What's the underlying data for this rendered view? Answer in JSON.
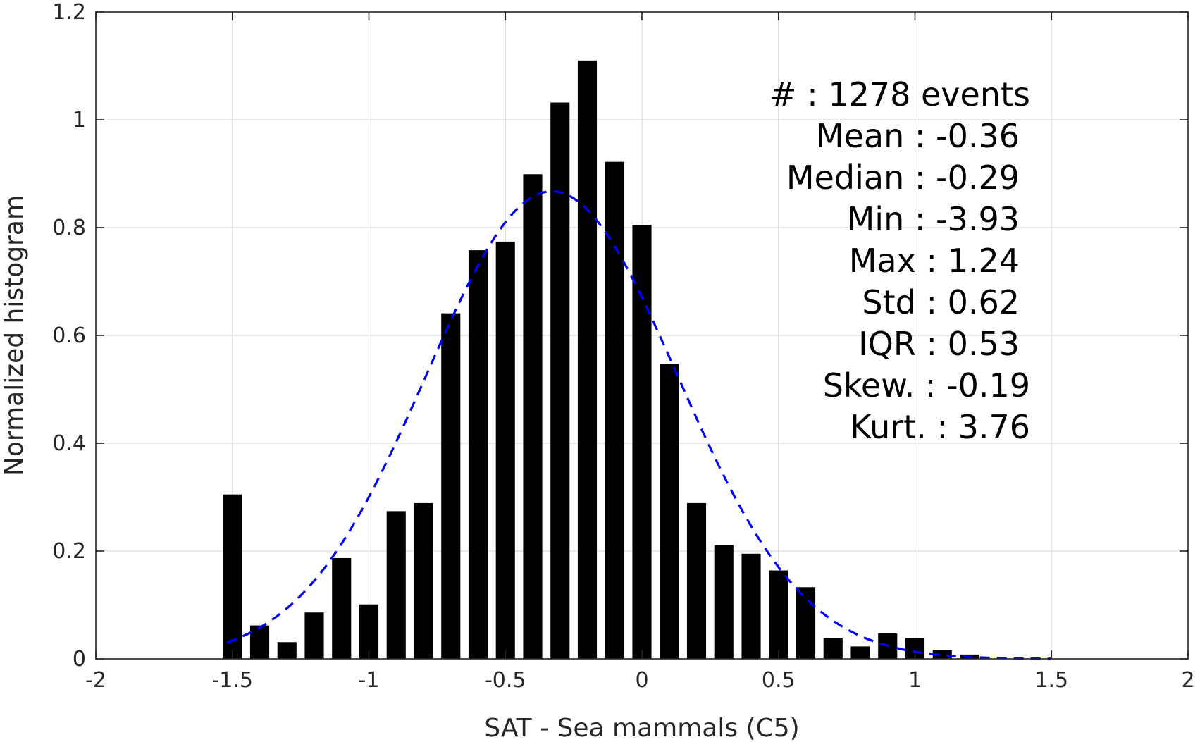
{
  "chart_data": {
    "type": "bar",
    "xlabel": "SAT - Sea mammals (C5)",
    "ylabel": "Normalized histogram",
    "xlim": [
      -2,
      2
    ],
    "ylim": [
      0,
      1.2
    ],
    "x_ticks": [
      "-2",
      "-1.5",
      "-1",
      "-0.5",
      "0",
      "0.5",
      "1",
      "1.5",
      "2"
    ],
    "y_ticks": [
      "0",
      "0.2",
      "0.4",
      "0.6",
      "0.8",
      "1",
      "1.2"
    ],
    "grid": true,
    "bar_color": "#000000",
    "bars": {
      "x": [
        -1.5,
        -1.4,
        -1.3,
        -1.2,
        -1.1,
        -1.0,
        -0.9,
        -0.8,
        -0.7,
        -0.6,
        -0.5,
        -0.4,
        -0.3,
        -0.2,
        -0.1,
        0.0,
        0.1,
        0.2,
        0.3,
        0.4,
        0.5,
        0.6,
        0.7,
        0.8,
        0.9,
        1.0,
        1.1,
        1.2
      ],
      "values": [
        0.305,
        0.062,
        0.031,
        0.086,
        0.187,
        0.101,
        0.274,
        0.289,
        0.641,
        0.758,
        0.774,
        0.899,
        1.032,
        1.11,
        0.922,
        0.805,
        0.547,
        0.289,
        0.211,
        0.195,
        0.164,
        0.133,
        0.039,
        0.023,
        0.047,
        0.039,
        0.016,
        0.008
      ]
    },
    "fit_curve": {
      "style": "dashed",
      "color": "#0000ff",
      "mean": -0.33,
      "sigma": 0.46,
      "x_range": [
        -1.52,
        1.5
      ]
    },
    "stats": [
      {
        "label": "#",
        "sep": ":",
        "value": "1278 events"
      },
      {
        "label": "Mean",
        "sep": ":",
        "value": "-0.36"
      },
      {
        "label": "Median",
        "sep": ":",
        "value": "-0.29"
      },
      {
        "label": "Min",
        "sep": ":",
        "value": "-3.93"
      },
      {
        "label": "Max",
        "sep": ":",
        "value": "1.24"
      },
      {
        "label": "Std",
        "sep": ":",
        "value": "0.62"
      },
      {
        "label": "IQR",
        "sep": ":",
        "value": "0.53"
      },
      {
        "label": "Skew.",
        "sep": ":",
        "value": "-0.19"
      },
      {
        "label": "Kurt.",
        "sep": ":",
        "value": "3.76"
      }
    ]
  }
}
